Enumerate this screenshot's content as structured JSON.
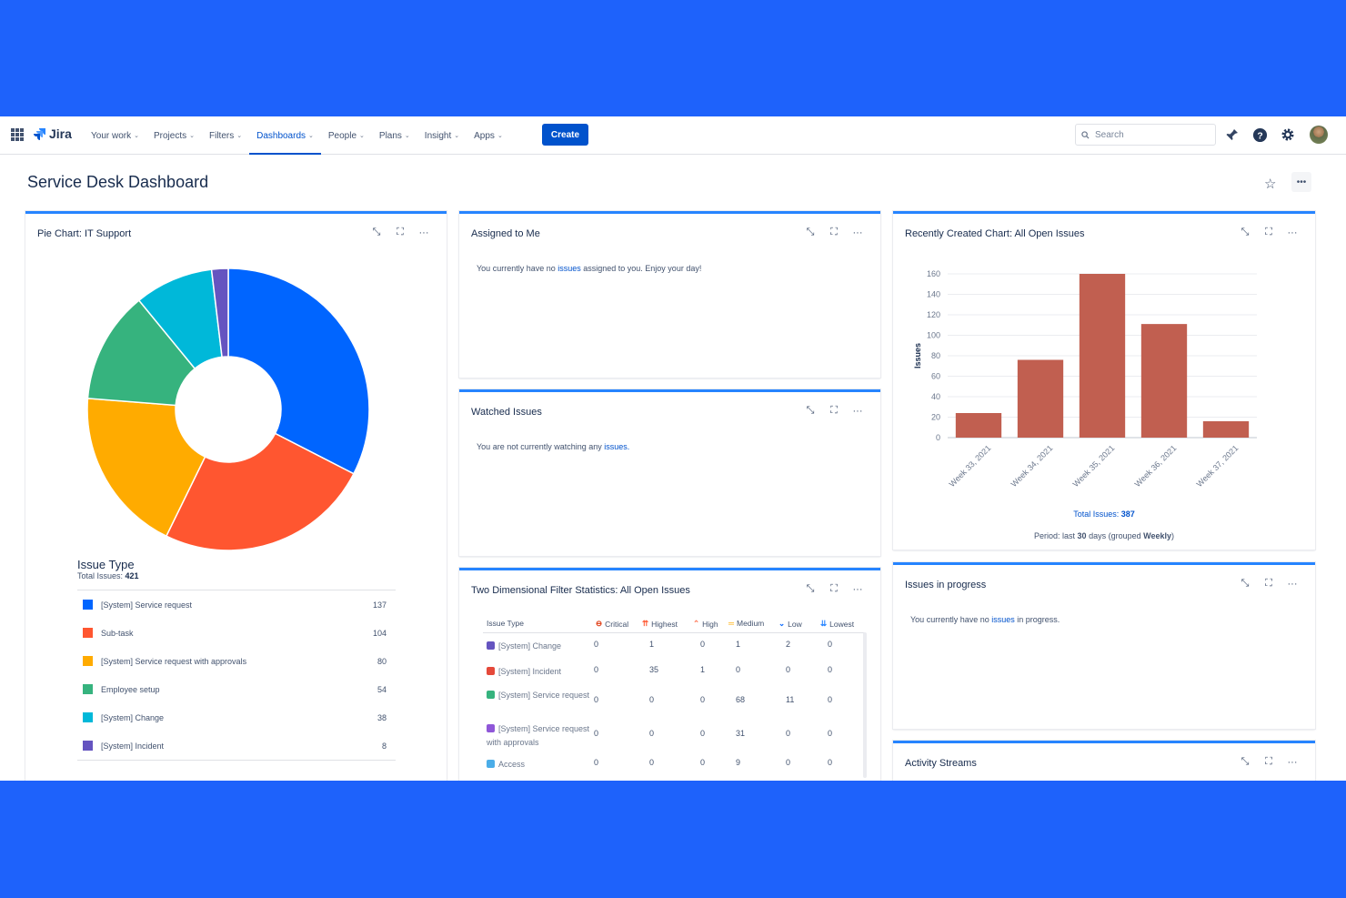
{
  "nav": {
    "logo_text": "Jira",
    "items": [
      {
        "label": "Your work"
      },
      {
        "label": "Projects"
      },
      {
        "label": "Filters"
      },
      {
        "label": "Dashboards",
        "active": true
      },
      {
        "label": "People"
      },
      {
        "label": "Plans"
      },
      {
        "label": "Insight"
      },
      {
        "label": "Apps"
      }
    ],
    "create_label": "Create",
    "search_placeholder": "Search"
  },
  "page": {
    "title": "Service Desk Dashboard"
  },
  "gadgets": {
    "pie": {
      "title": "Pie Chart: IT Support"
    },
    "assigned": {
      "title": "Assigned to Me",
      "msg_pre": "You currently have no ",
      "msg_link": "issues",
      "msg_post": " assigned to you. Enjoy your day!"
    },
    "watched": {
      "title": "Watched Issues",
      "msg_pre": "You are not currently watching any ",
      "msg_link": "issues."
    },
    "twod": {
      "title": "Two Dimensional Filter Statistics: All Open Issues"
    },
    "recent": {
      "title": "Recently Created Chart: All Open Issues"
    },
    "inprogress": {
      "title": "Issues in progress",
      "msg_pre": "You currently have no ",
      "msg_link": "issues",
      "msg_post": " in progress."
    },
    "activity": {
      "title": "Activity Streams"
    }
  },
  "pie_legend": {
    "title": "Issue Type",
    "total_label": "Total Issues:",
    "total_value": "421"
  },
  "twod_table": {
    "header_col": "Issue Type",
    "priorities": [
      {
        "label": "Critical",
        "color": "#de350b"
      },
      {
        "label": "Highest",
        "color": "#ff5630"
      },
      {
        "label": "High",
        "color": "#ff7452"
      },
      {
        "label": "Medium",
        "color": "#ffab00"
      },
      {
        "label": "Low",
        "color": "#0065ff"
      },
      {
        "label": "Lowest",
        "color": "#2684ff"
      }
    ],
    "rows": [
      {
        "name": "[System] Change",
        "icon_color": "#6554c0",
        "values": [
          "0",
          "1",
          "0",
          "1",
          "2",
          "0"
        ]
      },
      {
        "name": "[System] Incident",
        "icon_color": "#e5493a",
        "values": [
          "0",
          "35",
          "1",
          "0",
          "0",
          "0"
        ]
      },
      {
        "name": "[System] Service request",
        "icon_color": "#36b37e",
        "values": [
          "0",
          "0",
          "0",
          "68",
          "11",
          "0"
        ]
      },
      {
        "name": "[System] Service request with approvals",
        "icon_color": "#8f57d8",
        "values": [
          "0",
          "0",
          "0",
          "31",
          "0",
          "0"
        ]
      },
      {
        "name": "Access",
        "icon_color": "#4bade8",
        "values": [
          "0",
          "0",
          "0",
          "9",
          "0",
          "0"
        ]
      }
    ]
  },
  "recent_footer": {
    "total_label": "Total Issues:",
    "total_value": "387",
    "period_pre": "Period: last",
    "period_days": "30",
    "period_mid": "days (grouped",
    "period_group": "Weekly",
    "period_post": ")"
  },
  "chart_data": [
    {
      "type": "pie",
      "title": "Issue Type",
      "categories": [
        "[System] Service request",
        "Sub-task",
        "[System] Service request with approvals",
        "Employee setup",
        "[System] Change",
        "[System] Incident"
      ],
      "values": [
        137,
        104,
        80,
        54,
        38,
        8
      ],
      "colors": [
        "#0065ff",
        "#ff5630",
        "#ffab00",
        "#36b37e",
        "#00b8d9",
        "#6554c0"
      ],
      "donut": true
    },
    {
      "type": "bar",
      "categories": [
        "Week 33, 2021",
        "Week 34, 2021",
        "Week 35, 2021",
        "Week 36, 2021",
        "Week 37, 2021"
      ],
      "values": [
        24,
        76,
        160,
        111,
        16
      ],
      "ylabel": "Issues",
      "ylim": [
        0,
        160
      ],
      "yticks": [
        0,
        20,
        40,
        60,
        80,
        100,
        120,
        140,
        160
      ],
      "bar_color": "#c15f50",
      "grid": true
    }
  ]
}
